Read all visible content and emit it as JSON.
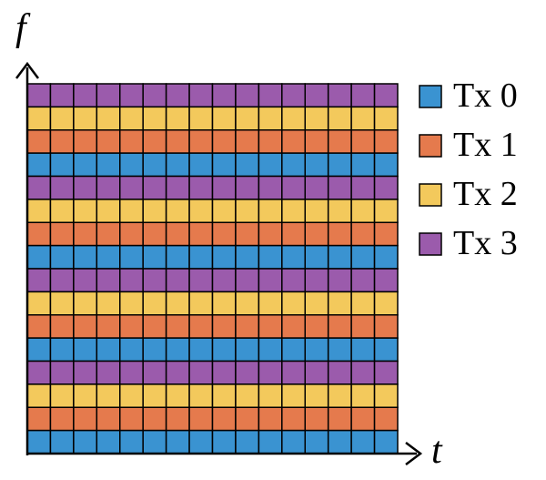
{
  "axes": {
    "x_label": "t",
    "y_label": "f"
  },
  "grid": {
    "columns": 16,
    "row_pattern_top_to_bottom": [
      "Tx 3",
      "Tx 2",
      "Tx 1",
      "Tx 0",
      "Tx 3",
      "Tx 2",
      "Tx 1",
      "Tx 0",
      "Tx 3",
      "Tx 2",
      "Tx 1",
      "Tx 0",
      "Tx 3",
      "Tx 2",
      "Tx 1",
      "Tx 0"
    ]
  },
  "legend": [
    {
      "label": "Tx 0",
      "color": "#3a93d1"
    },
    {
      "label": "Tx 1",
      "color": "#e57a4d"
    },
    {
      "label": "Tx 2",
      "color": "#f3c95c"
    },
    {
      "label": "Tx 3",
      "color": "#9b5bac"
    }
  ]
}
